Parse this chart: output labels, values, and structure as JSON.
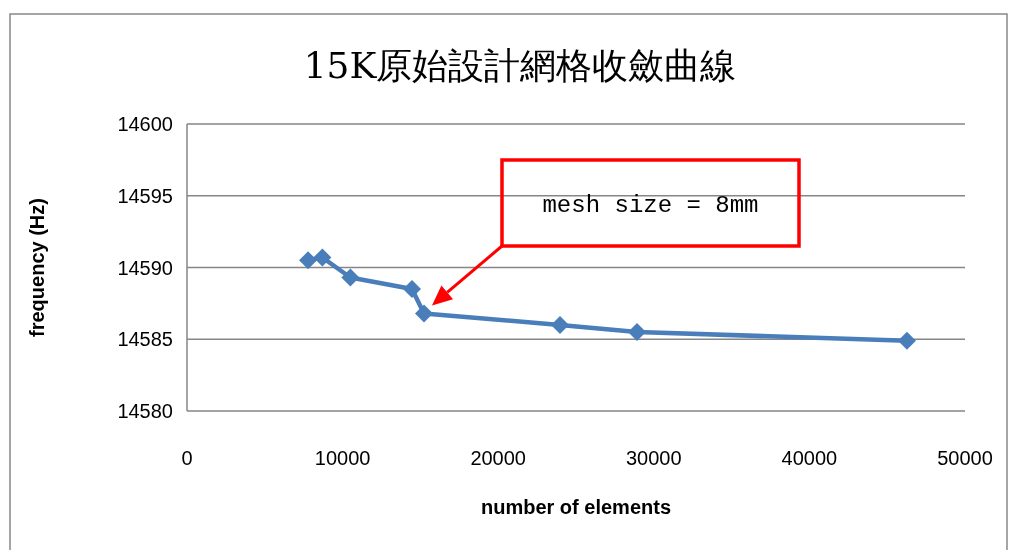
{
  "chart_data": {
    "type": "line",
    "title": "15K原始設計網格收斂曲線",
    "xlabel": "number of elements",
    "ylabel": "frequency (Hz)",
    "x": [
      7780,
      8700,
      10500,
      14460,
      15230,
      23970,
      28920,
      46270
    ],
    "series": [
      {
        "color": "#4a7ebb",
        "values": [
          14590.5,
          14590.7,
          14589.3,
          14588.5,
          14586.8,
          14586.0,
          14585.5,
          14584.9
        ]
      }
    ],
    "xlim": [
      0,
      50000
    ],
    "xticks": [
      0,
      10000,
      20000,
      30000,
      40000,
      50000
    ],
    "ylim": [
      14580,
      14600
    ],
    "yticks": [
      14580,
      14585,
      14590,
      14595,
      14600
    ],
    "grid": "y",
    "marker": "diamond",
    "line_style": "solid",
    "annotations": [
      "mesh size = 8mm"
    ]
  }
}
